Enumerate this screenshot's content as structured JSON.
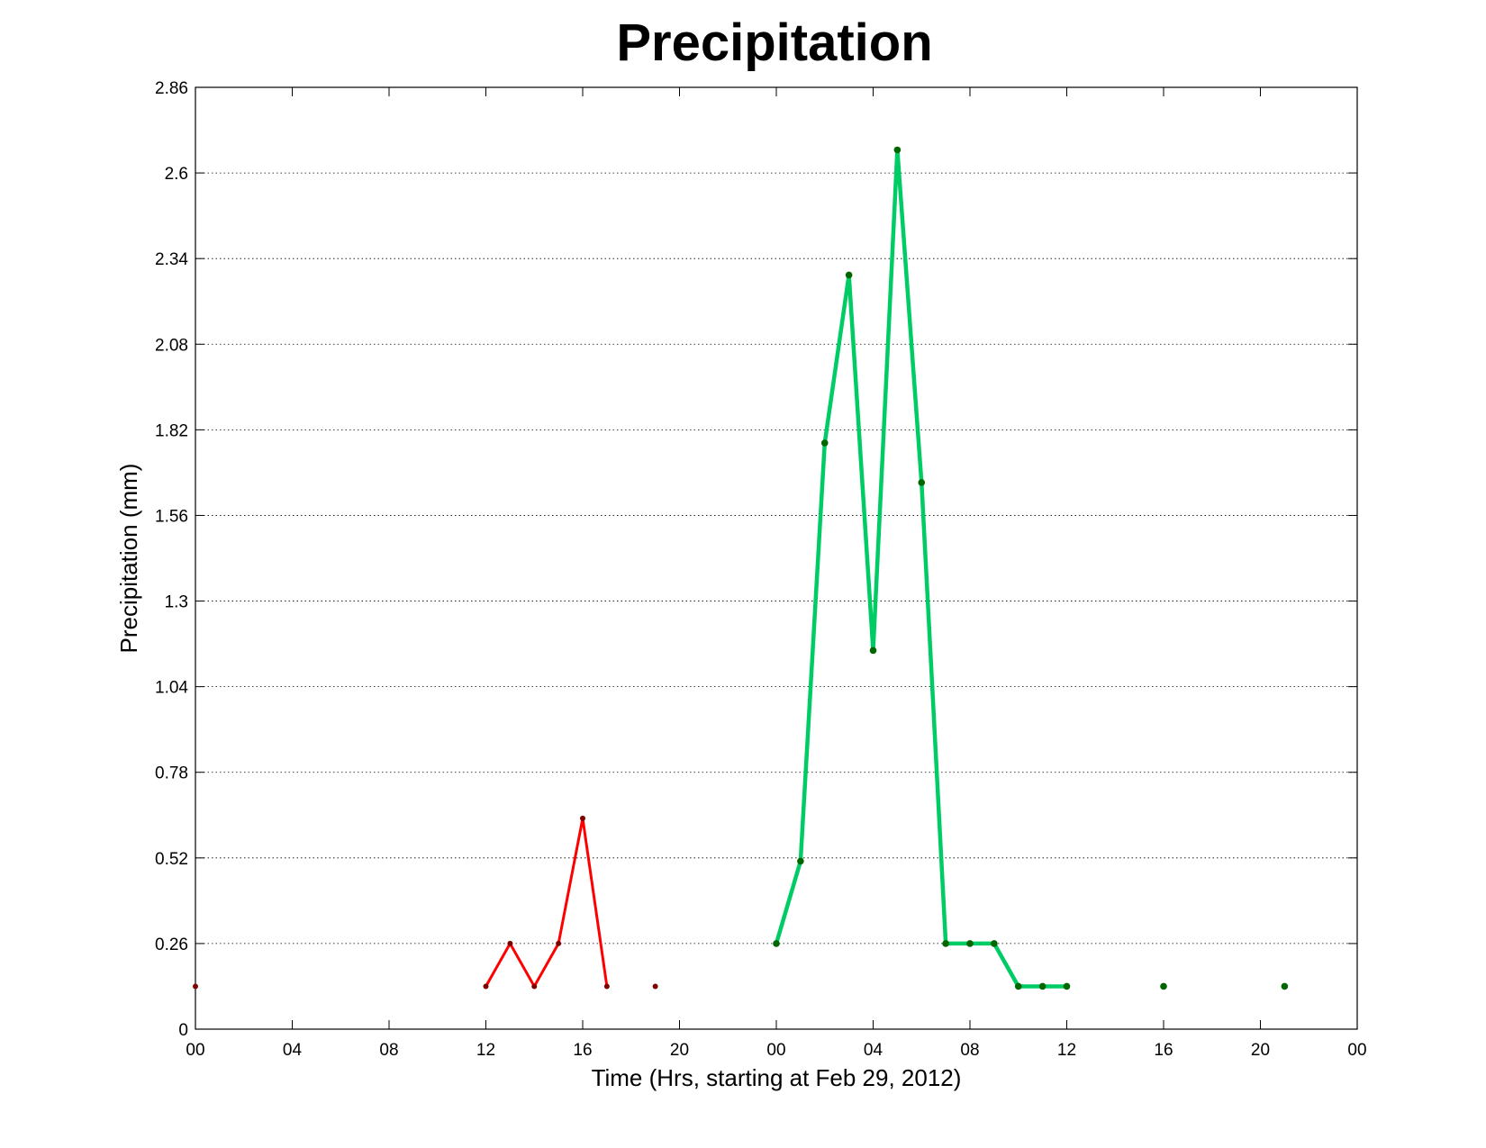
{
  "chart_data": {
    "type": "line",
    "title": "Precipitation",
    "xlabel": "Time (Hrs, starting at Feb 29, 2012)",
    "ylabel": "Precipitation (mm)",
    "x_unit": "hours",
    "xlim": [
      0,
      48
    ],
    "ylim": [
      0,
      2.86
    ],
    "x_ticks": [
      {
        "value": 0,
        "label": "00"
      },
      {
        "value": 4,
        "label": "04"
      },
      {
        "value": 8,
        "label": "08"
      },
      {
        "value": 12,
        "label": "12"
      },
      {
        "value": 16,
        "label": "16"
      },
      {
        "value": 20,
        "label": "20"
      },
      {
        "value": 24,
        "label": "00"
      },
      {
        "value": 28,
        "label": "04"
      },
      {
        "value": 32,
        "label": "08"
      },
      {
        "value": 36,
        "label": "12"
      },
      {
        "value": 40,
        "label": "16"
      },
      {
        "value": 44,
        "label": "20"
      },
      {
        "value": 48,
        "label": "00"
      }
    ],
    "y_ticks": [
      "0",
      "0.26",
      "0.52",
      "0.78",
      "1.04",
      "1.3",
      "1.56",
      "1.82",
      "2.08",
      "2.34",
      "2.6",
      "2.86"
    ],
    "grid": true,
    "legend": "none",
    "series": [
      {
        "color": "#ff0000",
        "marker_color": "#800000",
        "segments": [
          [
            {
              "x": 0,
              "y": 0.13
            }
          ],
          [
            {
              "x": 12,
              "y": 0.13
            },
            {
              "x": 13,
              "y": 0.26
            },
            {
              "x": 14,
              "y": 0.13
            },
            {
              "x": 15,
              "y": 0.26
            },
            {
              "x": 16,
              "y": 0.64
            },
            {
              "x": 17,
              "y": 0.13
            }
          ],
          [
            {
              "x": 19,
              "y": 0.13
            }
          ]
        ]
      },
      {
        "color": "#00cc66",
        "marker_color": "#006600",
        "segments": [
          [
            {
              "x": 24,
              "y": 0.26
            },
            {
              "x": 25,
              "y": 0.51
            },
            {
              "x": 26,
              "y": 1.78
            },
            {
              "x": 27,
              "y": 2.29
            },
            {
              "x": 28,
              "y": 1.15
            },
            {
              "x": 29,
              "y": 2.67
            },
            {
              "x": 30,
              "y": 1.66
            },
            {
              "x": 31,
              "y": 0.26
            },
            {
              "x": 32,
              "y": 0.26
            },
            {
              "x": 33,
              "y": 0.26
            },
            {
              "x": 34,
              "y": 0.13
            },
            {
              "x": 35,
              "y": 0.13
            },
            {
              "x": 36,
              "y": 0.13
            }
          ],
          [
            {
              "x": 40,
              "y": 0.13
            }
          ],
          [
            {
              "x": 45,
              "y": 0.13
            }
          ]
        ]
      }
    ]
  }
}
